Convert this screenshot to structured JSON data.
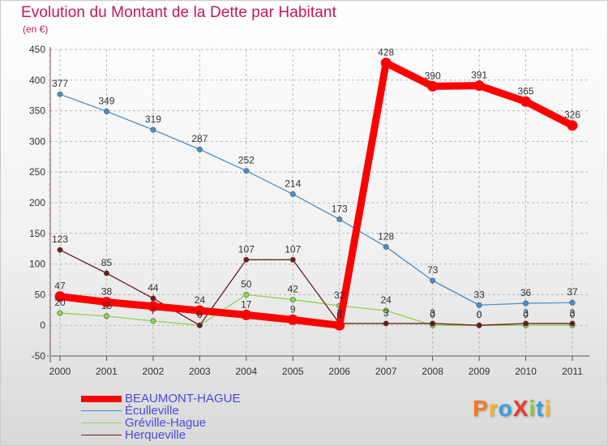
{
  "chart_data": {
    "type": "line",
    "title": "Evolution du Montant de la Dette par Habitant",
    "subtitle": "(en €)",
    "x": [
      "2000",
      "2001",
      "2002",
      "2003",
      "2004",
      "2005",
      "2006",
      "2007",
      "2008",
      "2009",
      "2010",
      "2011"
    ],
    "ylim": [
      -50,
      450
    ],
    "yticks": [
      -50,
      0,
      50,
      100,
      150,
      200,
      250,
      300,
      350,
      400,
      450
    ],
    "grid": "dashed horizontal",
    "legend_position": "bottom-left",
    "series": [
      {
        "name": "BEAUMONT-HAGUE",
        "color": "#ff0000",
        "values": [
          47,
          38,
          31,
          24,
          17,
          9,
          0,
          428,
          390,
          391,
          365,
          326
        ],
        "labels": [
          "47",
          "38",
          "",
          "24",
          "17",
          "9",
          "0",
          "428",
          "390",
          "391",
          "365",
          "326"
        ]
      },
      {
        "name": "Éculleville",
        "color": "#4a90c8",
        "values": [
          377,
          349,
          319,
          287,
          252,
          214,
          173,
          128,
          73,
          33,
          36,
          37
        ],
        "labels": [
          "377",
          "349",
          "319",
          "287",
          "252",
          "214",
          "173",
          "128",
          "73",
          "33",
          "36",
          "37"
        ]
      },
      {
        "name": "Gréville-Hague",
        "color": "#8ed64b",
        "values": [
          20,
          15,
          7,
          0,
          50,
          42,
          32,
          24,
          0,
          0,
          0,
          0
        ],
        "labels": [
          "20",
          "15",
          "7",
          "0",
          "50",
          "42",
          "32",
          "24",
          "0",
          "0",
          "0",
          "0"
        ]
      },
      {
        "name": "Herqueville",
        "color": "#6b1a1f",
        "values": [
          123,
          85,
          44,
          0,
          107,
          107,
          3,
          3,
          3,
          0,
          3,
          3
        ],
        "labels": [
          "123",
          "85",
          "44",
          "0",
          "107",
          "107",
          "3",
          "3",
          "3",
          "0",
          "3",
          "3"
        ]
      }
    ]
  },
  "logo": {
    "text": "ProXiti",
    "colors": [
      "#f47a20",
      "#f7b52c",
      "#3aa0d8",
      "#e63c2e",
      "#8cc63f",
      "#3aa0d8",
      "#f7b52c"
    ]
  }
}
